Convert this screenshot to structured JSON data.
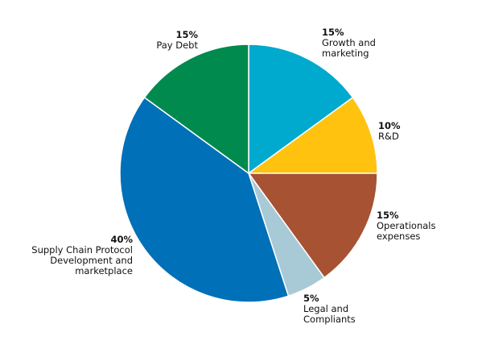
{
  "chart_data": {
    "type": "pie",
    "categories": [
      "Growth and marketing",
      "R&D",
      "Operationals expenses",
      "Legal and Compliants",
      "Supply Chain Protocol Development and marketplace",
      "Pay Debt"
    ],
    "values": [
      15,
      10,
      15,
      5,
      40,
      15
    ],
    "value_labels": [
      "15%",
      "10%",
      "15%",
      "5%",
      "40%",
      "15%"
    ],
    "colors": [
      "#00a9ce",
      "#ffc20e",
      "#a65233",
      "#a8c9d6",
      "#0070b8",
      "#008a4e"
    ]
  }
}
